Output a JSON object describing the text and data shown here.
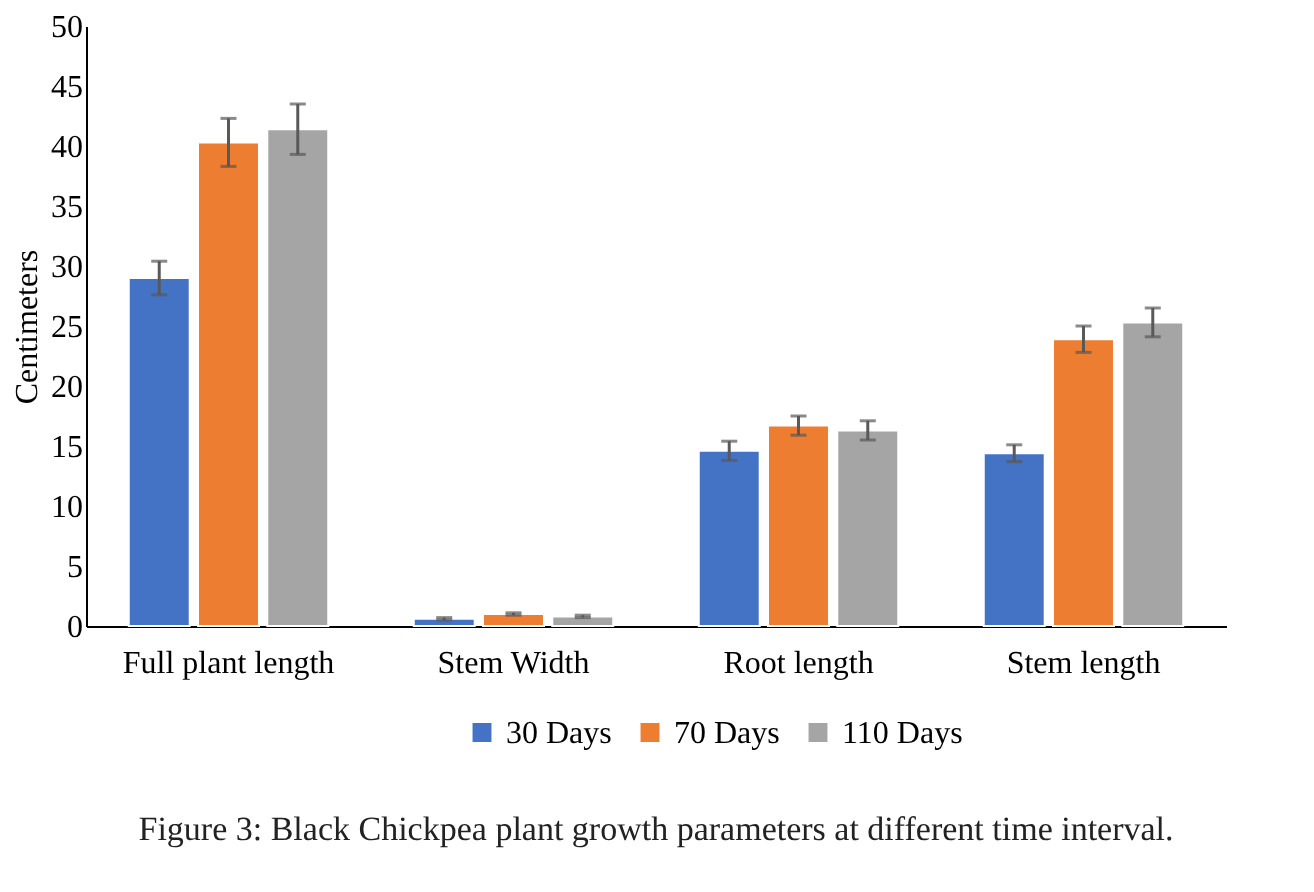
{
  "chart_data": {
    "type": "bar",
    "ylabel": "Centimeters",
    "categories": [
      "Full plant length",
      "Stem Width",
      "Root length",
      "Stem length"
    ],
    "series": [
      {
        "name": "30 Days",
        "color": "#4472c4",
        "values": [
          29.0,
          0.6,
          14.6,
          14.4
        ],
        "errors": [
          1.4,
          0.1,
          0.8,
          0.7
        ]
      },
      {
        "name": "70 Days",
        "color": "#ed7d31",
        "values": [
          40.3,
          1.0,
          16.7,
          23.9
        ],
        "errors": [
          2.0,
          0.1,
          0.8,
          1.1
        ]
      },
      {
        "name": "110 Days",
        "color": "#a5a5a5",
        "values": [
          41.4,
          0.8,
          16.3,
          25.3
        ],
        "errors": [
          2.1,
          0.1,
          0.8,
          1.2
        ]
      }
    ],
    "ylim": [
      0,
      50
    ],
    "yticks": [
      0,
      5,
      10,
      15,
      20,
      25,
      30,
      35,
      40,
      45,
      50
    ],
    "grid": false,
    "legend": "bottom",
    "annotations": [
      "Figure 3: Black Chickpea plant growth parameters at different time interval."
    ]
  }
}
